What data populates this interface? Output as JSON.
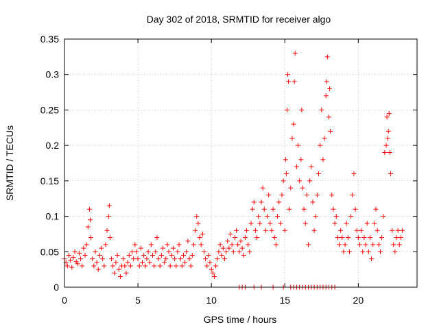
{
  "chart_data": {
    "type": "scatter",
    "title": "Day 302 of 2018, SRMTID for receiver algo",
    "xlabel": "GPS time / hours",
    "ylabel": "SRMTID / TECUs",
    "xlim": [
      0,
      24
    ],
    "ylim": [
      0,
      0.35
    ],
    "xticks": [
      0,
      5,
      10,
      15,
      20
    ],
    "xtick_labels": [
      "0",
      "5",
      "10",
      "15",
      "20"
    ],
    "yticks": [
      0,
      0.05,
      0.1,
      0.15,
      0.2,
      0.25,
      0.3,
      0.35
    ],
    "ytick_labels": [
      "0",
      "0.05",
      "0.1",
      "0.15",
      "0.2",
      "0.25",
      "0.3",
      "0.35"
    ],
    "grid": true,
    "marker": "+",
    "color": "#ff0000",
    "series": [
      {
        "name": "SRMTID",
        "points": [
          [
            0.0,
            0.04
          ],
          [
            0.1,
            0.035
          ],
          [
            0.2,
            0.03
          ],
          [
            0.3,
            0.045
          ],
          [
            0.4,
            0.038
          ],
          [
            0.5,
            0.028
          ],
          [
            0.6,
            0.042
          ],
          [
            0.7,
            0.05
          ],
          [
            0.8,
            0.036
          ],
          [
            0.9,
            0.033
          ],
          [
            1.0,
            0.048
          ],
          [
            1.1,
            0.04
          ],
          [
            1.2,
            0.03
          ],
          [
            1.3,
            0.055
          ],
          [
            1.4,
            0.045
          ],
          [
            1.5,
            0.06
          ],
          [
            1.6,
            0.085
          ],
          [
            1.7,
            0.11
          ],
          [
            1.75,
            0.095
          ],
          [
            1.8,
            0.07
          ],
          [
            1.9,
            0.04
          ],
          [
            2.0,
            0.03
          ],
          [
            2.1,
            0.05
          ],
          [
            2.2,
            0.035
          ],
          [
            2.3,
            0.025
          ],
          [
            2.4,
            0.045
          ],
          [
            2.5,
            0.055
          ],
          [
            2.6,
            0.04
          ],
          [
            2.7,
            0.03
          ],
          [
            2.8,
            0.06
          ],
          [
            2.9,
            0.08
          ],
          [
            3.0,
            0.1
          ],
          [
            3.05,
            0.115
          ],
          [
            3.1,
            0.07
          ],
          [
            3.2,
            0.04
          ],
          [
            3.3,
            0.03
          ],
          [
            3.4,
            0.02
          ],
          [
            3.5,
            0.035
          ],
          [
            3.6,
            0.045
          ],
          [
            3.7,
            0.025
          ],
          [
            3.8,
            0.015
          ],
          [
            3.9,
            0.03
          ],
          [
            4.0,
            0.04
          ],
          [
            4.1,
            0.03
          ],
          [
            4.2,
            0.02
          ],
          [
            4.3,
            0.035
          ],
          [
            4.4,
            0.045
          ],
          [
            4.5,
            0.03
          ],
          [
            4.6,
            0.05
          ],
          [
            4.7,
            0.04
          ],
          [
            4.8,
            0.06
          ],
          [
            4.9,
            0.05
          ],
          [
            5.0,
            0.04
          ],
          [
            5.1,
            0.03
          ],
          [
            5.2,
            0.055
          ],
          [
            5.3,
            0.035
          ],
          [
            5.4,
            0.045
          ],
          [
            5.5,
            0.03
          ],
          [
            5.6,
            0.04
          ],
          [
            5.7,
            0.05
          ],
          [
            5.8,
            0.035
          ],
          [
            5.9,
            0.06
          ],
          [
            6.0,
            0.045
          ],
          [
            6.1,
            0.03
          ],
          [
            6.2,
            0.05
          ],
          [
            6.3,
            0.07
          ],
          [
            6.4,
            0.04
          ],
          [
            6.5,
            0.03
          ],
          [
            6.6,
            0.045
          ],
          [
            6.7,
            0.055
          ],
          [
            6.8,
            0.035
          ],
          [
            6.9,
            0.04
          ],
          [
            7.0,
            0.06
          ],
          [
            7.1,
            0.05
          ],
          [
            7.2,
            0.03
          ],
          [
            7.3,
            0.045
          ],
          [
            7.4,
            0.055
          ],
          [
            7.5,
            0.04
          ],
          [
            7.6,
            0.03
          ],
          [
            7.7,
            0.05
          ],
          [
            7.8,
            0.06
          ],
          [
            7.9,
            0.04
          ],
          [
            8.0,
            0.03
          ],
          [
            8.1,
            0.045
          ],
          [
            8.2,
            0.035
          ],
          [
            8.3,
            0.05
          ],
          [
            8.4,
            0.065
          ],
          [
            8.5,
            0.04
          ],
          [
            8.6,
            0.03
          ],
          [
            8.7,
            0.045
          ],
          [
            8.8,
            0.06
          ],
          [
            8.9,
            0.08
          ],
          [
            9.0,
            0.1
          ],
          [
            9.1,
            0.09
          ],
          [
            9.2,
            0.07
          ],
          [
            9.3,
            0.06
          ],
          [
            9.4,
            0.075
          ],
          [
            9.5,
            0.05
          ],
          [
            9.6,
            0.04
          ],
          [
            9.7,
            0.03
          ],
          [
            9.8,
            0.045
          ],
          [
            9.9,
            0.035
          ],
          [
            10.0,
            0.025
          ],
          [
            10.1,
            0.02
          ],
          [
            10.2,
            0.015
          ],
          [
            10.3,
            0.03
          ],
          [
            10.4,
            0.04
          ],
          [
            10.5,
            0.05
          ],
          [
            10.6,
            0.06
          ],
          [
            10.7,
            0.045
          ],
          [
            10.8,
            0.055
          ],
          [
            10.9,
            0.04
          ],
          [
            11.0,
            0.05
          ],
          [
            11.1,
            0.065
          ],
          [
            11.2,
            0.055
          ],
          [
            11.3,
            0.075
          ],
          [
            11.4,
            0.06
          ],
          [
            11.5,
            0.05
          ],
          [
            11.6,
            0.07
          ],
          [
            11.7,
            0.08
          ],
          [
            11.8,
            0.06
          ],
          [
            11.9,
            0.05
          ],
          [
            12.0,
            0.065
          ],
          [
            12.1,
            0.055
          ],
          [
            12.2,
            0.045
          ],
          [
            12.3,
            0.07
          ],
          [
            12.4,
            0.08
          ],
          [
            12.5,
            0.06
          ],
          [
            12.6,
            0.05
          ],
          [
            12.7,
            0.09
          ],
          [
            12.8,
            0.11
          ],
          [
            12.9,
            0.12
          ],
          [
            13.0,
            0.08
          ],
          [
            13.1,
            0.07
          ],
          [
            13.2,
            0.1
          ],
          [
            13.3,
            0.09
          ],
          [
            13.4,
            0.12
          ],
          [
            13.5,
            0.14
          ],
          [
            13.6,
            0.11
          ],
          [
            13.7,
            0.08
          ],
          [
            13.8,
            0.1
          ],
          [
            13.9,
            0.13
          ],
          [
            14.0,
            0.09
          ],
          [
            14.1,
            0.08
          ],
          [
            14.2,
            0.11
          ],
          [
            14.3,
            0.07
          ],
          [
            14.4,
            0.06
          ],
          [
            14.5,
            0.1
          ],
          [
            14.6,
            0.12
          ],
          [
            14.7,
            0.09
          ],
          [
            14.8,
            0.13
          ],
          [
            14.9,
            0.15
          ],
          [
            15.0,
            0.08
          ],
          [
            15.05,
            0.18
          ],
          [
            15.1,
            0.16
          ],
          [
            15.15,
            0.25
          ],
          [
            15.2,
            0.3
          ],
          [
            15.25,
            0.29
          ],
          [
            15.3,
            0.11
          ],
          [
            15.4,
            0.14
          ],
          [
            15.5,
            0.21
          ],
          [
            15.6,
            0.23
          ],
          [
            15.65,
            0.29
          ],
          [
            15.7,
            0.33
          ],
          [
            15.8,
            0.17
          ],
          [
            15.9,
            0.2
          ],
          [
            16.0,
            0.15
          ],
          [
            16.1,
            0.18
          ],
          [
            16.15,
            0.25
          ],
          [
            16.2,
            0.14
          ],
          [
            16.3,
            0.11
          ],
          [
            16.4,
            0.09
          ],
          [
            16.5,
            0.13
          ],
          [
            16.6,
            0.06
          ],
          [
            16.7,
            0.15
          ],
          [
            16.8,
            0.17
          ],
          [
            16.9,
            0.12
          ],
          [
            17.0,
            0.08
          ],
          [
            17.1,
            0.1
          ],
          [
            17.2,
            0.13
          ],
          [
            17.3,
            0.16
          ],
          [
            17.4,
            0.2
          ],
          [
            17.5,
            0.25
          ],
          [
            17.6,
            0.18
          ],
          [
            17.7,
            0.21
          ],
          [
            17.8,
            0.27
          ],
          [
            17.85,
            0.29
          ],
          [
            17.9,
            0.325
          ],
          [
            18.0,
            0.24
          ],
          [
            18.05,
            0.28
          ],
          [
            18.1,
            0.22
          ],
          [
            18.2,
            0.13
          ],
          [
            18.3,
            0.11
          ],
          [
            18.4,
            0.09
          ],
          [
            18.5,
            0.1
          ],
          [
            18.6,
            0.07
          ],
          [
            18.7,
            0.06
          ],
          [
            18.8,
            0.08
          ],
          [
            18.9,
            0.07
          ],
          [
            19.0,
            0.05
          ],
          [
            19.1,
            0.06
          ],
          [
            19.2,
            0.09
          ],
          [
            19.3,
            0.07
          ],
          [
            19.4,
            0.05
          ],
          [
            19.5,
            0.1
          ],
          [
            19.6,
            0.13
          ],
          [
            19.7,
            0.16
          ],
          [
            19.8,
            0.11
          ],
          [
            19.9,
            0.08
          ],
          [
            20.0,
            0.07
          ],
          [
            20.1,
            0.06
          ],
          [
            20.2,
            0.08
          ],
          [
            20.3,
            0.05
          ],
          [
            20.4,
            0.07
          ],
          [
            20.5,
            0.06
          ],
          [
            20.6,
            0.09
          ],
          [
            20.7,
            0.05
          ],
          [
            20.8,
            0.07
          ],
          [
            20.9,
            0.04
          ],
          [
            21.0,
            0.06
          ],
          [
            21.1,
            0.09
          ],
          [
            21.2,
            0.11
          ],
          [
            21.3,
            0.08
          ],
          [
            21.4,
            0.06
          ],
          [
            21.5,
            0.05
          ],
          [
            21.6,
            0.07
          ],
          [
            21.7,
            0.1
          ],
          [
            21.8,
            0.19
          ],
          [
            21.9,
            0.2
          ],
          [
            21.95,
            0.24
          ],
          [
            22.0,
            0.21
          ],
          [
            22.05,
            0.22
          ],
          [
            22.1,
            0.245
          ],
          [
            22.15,
            0.19
          ],
          [
            22.2,
            0.16
          ],
          [
            22.3,
            0.08
          ],
          [
            22.4,
            0.06
          ],
          [
            22.5,
            0.05
          ],
          [
            22.6,
            0.07
          ],
          [
            22.7,
            0.08
          ],
          [
            22.8,
            0.06
          ],
          [
            22.9,
            0.07
          ],
          [
            23.0,
            0.08
          ]
        ]
      }
    ],
    "zero_points_x": [
      11.9,
      12.1,
      12.3,
      12.9,
      13.4,
      14.2,
      14.9,
      15.4,
      15.6,
      15.8,
      16.0,
      16.2,
      16.4,
      16.6,
      16.8,
      17.0,
      17.2,
      17.4,
      17.6,
      17.8,
      18.0,
      18.2,
      18.4
    ]
  }
}
